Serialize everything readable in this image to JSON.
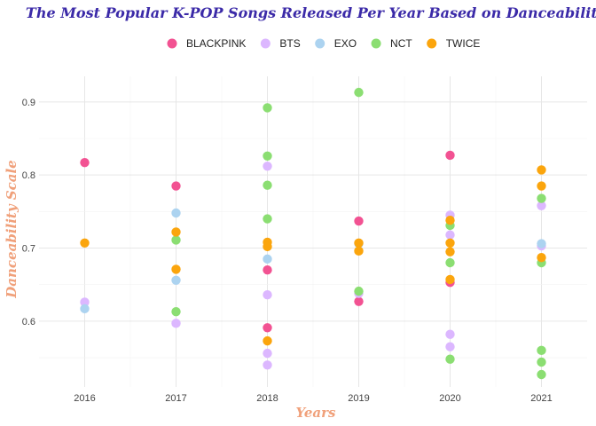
{
  "chart_data": {
    "type": "scatter",
    "title": "The Most Popular K-POP Songs Released Per Year Based on Danceability",
    "xlabel": "Years",
    "ylabel": "Danceability Scale",
    "categories": [
      "2016",
      "2017",
      "2018",
      "2019",
      "2020",
      "2021"
    ],
    "ylim": [
      0.51,
      0.935
    ],
    "y_ticks": [
      "0.6",
      "0.7",
      "0.8",
      "0.9"
    ],
    "grid": true,
    "legend_position": "top",
    "series": [
      {
        "name": "BLACKPINK",
        "color": "#f25292",
        "points": [
          [
            "2016",
            0.817
          ],
          [
            "2017",
            0.785
          ],
          [
            "2018",
            0.67
          ],
          [
            "2018",
            0.591
          ],
          [
            "2019",
            0.737
          ],
          [
            "2019",
            0.627
          ],
          [
            "2020",
            0.827
          ],
          [
            "2020",
            0.653
          ]
        ]
      },
      {
        "name": "BTS",
        "color": "#dcb7ff",
        "points": [
          [
            "2016",
            0.626
          ],
          [
            "2017",
            0.597
          ],
          [
            "2018",
            0.812
          ],
          [
            "2018",
            0.636
          ],
          [
            "2018",
            0.556
          ],
          [
            "2018",
            0.54
          ],
          [
            "2019",
            0.638
          ],
          [
            "2020",
            0.745
          ],
          [
            "2020",
            0.718
          ],
          [
            "2020",
            0.582
          ],
          [
            "2020",
            0.565
          ],
          [
            "2021",
            0.758
          ],
          [
            "2021",
            0.703
          ]
        ]
      },
      {
        "name": "EXO",
        "color": "#acd3f0",
        "points": [
          [
            "2016",
            0.617
          ],
          [
            "2017",
            0.748
          ],
          [
            "2017",
            0.656
          ],
          [
            "2018",
            0.685
          ],
          [
            "2019",
            0.706
          ],
          [
            "2021",
            0.706
          ]
        ]
      },
      {
        "name": "NCT",
        "color": "#8bde72",
        "points": [
          [
            "2017",
            0.711
          ],
          [
            "2017",
            0.613
          ],
          [
            "2018",
            0.892
          ],
          [
            "2018",
            0.826
          ],
          [
            "2018",
            0.786
          ],
          [
            "2018",
            0.74
          ],
          [
            "2019",
            0.913
          ],
          [
            "2019",
            0.641
          ],
          [
            "2020",
            0.731
          ],
          [
            "2020",
            0.68
          ],
          [
            "2020",
            0.548
          ],
          [
            "2021",
            0.768
          ],
          [
            "2021",
            0.68
          ],
          [
            "2021",
            0.56
          ],
          [
            "2021",
            0.544
          ],
          [
            "2021",
            0.527
          ]
        ]
      },
      {
        "name": "TWICE",
        "color": "#fba50d",
        "points": [
          [
            "2016",
            0.707
          ],
          [
            "2017",
            0.722
          ],
          [
            "2017",
            0.671
          ],
          [
            "2018",
            0.708
          ],
          [
            "2018",
            0.702
          ],
          [
            "2018",
            0.573
          ],
          [
            "2019",
            0.707
          ],
          [
            "2019",
            0.696
          ],
          [
            "2020",
            0.738
          ],
          [
            "2020",
            0.707
          ],
          [
            "2020",
            0.695
          ],
          [
            "2020",
            0.657
          ],
          [
            "2021",
            0.807
          ],
          [
            "2021",
            0.785
          ],
          [
            "2021",
            0.687
          ]
        ]
      }
    ]
  }
}
